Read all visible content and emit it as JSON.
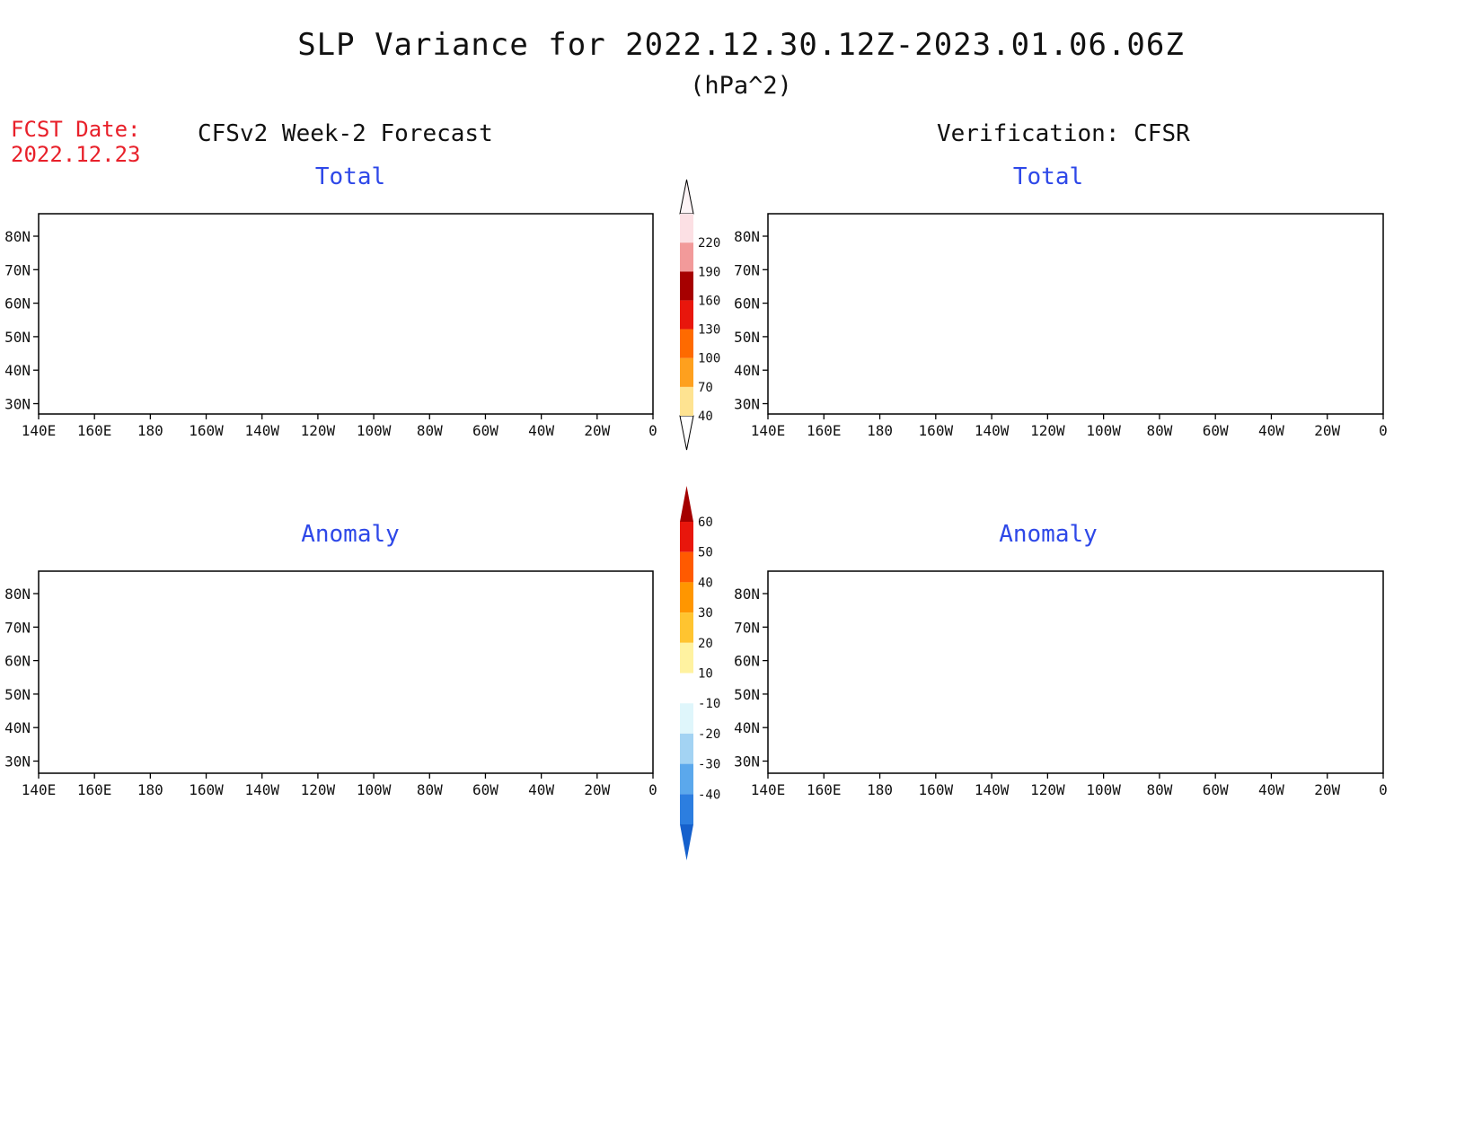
{
  "title": "SLP Variance for 2022.12.30.12Z-2023.01.06.06Z",
  "units": "(hPa^2)",
  "fcst_label": "FCST Date:",
  "fcst_date": "2022.12.23",
  "left_header": "CFSv2 Week-2 Forecast",
  "right_header": "Verification: CFSR",
  "panels": {
    "ft": {
      "label": "Total"
    },
    "vt": {
      "label": "Total"
    },
    "fa": {
      "label": "Anomaly"
    },
    "va": {
      "label": "Anomaly"
    }
  },
  "lat_ticks": [
    "80N",
    "70N",
    "60N",
    "50N",
    "40N",
    "30N"
  ],
  "lon_ticks": [
    "140E",
    "160E",
    "180",
    "160W",
    "140W",
    "120W",
    "100W",
    "80W",
    "60W",
    "40W",
    "20W",
    "0"
  ],
  "total_colorbar": {
    "levels": [
      "40",
      "70",
      "100",
      "130",
      "160",
      "190",
      "220"
    ],
    "colors": [
      "#fee391",
      "#fea01e",
      "#fe6a00",
      "#e8160c",
      "#a60000",
      "#f29a9a",
      "#fce0e4"
    ]
  },
  "anomaly_colorbar": {
    "levels": [
      "60",
      "50",
      "40",
      "30",
      "20",
      "10",
      "-10",
      "-20",
      "-30",
      "-40"
    ],
    "colors": [
      "#a40000",
      "#e8160c",
      "#ff5a00",
      "#ff9600",
      "#ffc430",
      "#fff2a0",
      "#ffffff",
      "#dff6fb",
      "#a3d3f3",
      "#5ba8ec",
      "#2c7ee0",
      "#1560cc"
    ]
  }
}
